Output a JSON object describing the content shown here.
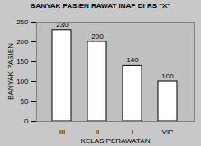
{
  "chart_data": {
    "type": "bar",
    "title": "BANYAK PASIEN RAWAT INAP DI RS \"X\"",
    "x_label": "KELAS PERAWATAN",
    "y_label": "BANYAK PASIEN",
    "categories": [
      "III",
      "II",
      "I",
      "VIP"
    ],
    "values": [
      230,
      200,
      140,
      100
    ],
    "color": "#ffffff",
    "ylim": [
      0,
      250
    ],
    "yticks": [
      0,
      50,
      100,
      150,
      200,
      250
    ],
    "grid": true,
    "data_labels": true
  }
}
